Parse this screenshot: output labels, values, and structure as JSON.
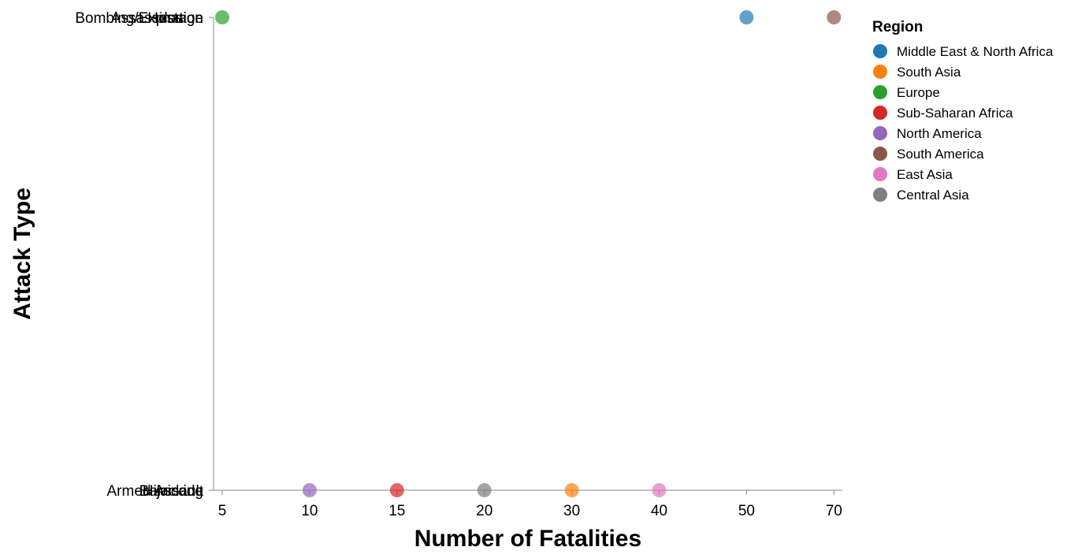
{
  "chart_data": {
    "type": "scatter",
    "title": "",
    "xlabel": "Number of Fatalities",
    "ylabel": "Attack Type",
    "x_ticks": [
      "5",
      "10",
      "15",
      "20",
      "30",
      "40",
      "50",
      "70"
    ],
    "y_categories": [
      "Bombing/Explosion",
      "Hostage",
      "Assassination",
      "Barricade",
      "Hijacking",
      "Armed Assault"
    ],
    "legend_title": "Region",
    "legend_position": "right",
    "grid": false,
    "points": [
      {
        "x": 50,
        "y": "Bombing/Explosion",
        "region": "Middle East & North Africa"
      },
      {
        "x": 30,
        "y": "Armed Assault",
        "region": "South Asia"
      },
      {
        "x": 5,
        "y": "Assassination",
        "region": "Europe"
      },
      {
        "x": 15,
        "y": "Hijacking",
        "region": "Sub-Saharan Africa"
      },
      {
        "x": 10,
        "y": "Barricade",
        "region": "North America"
      },
      {
        "x": 70,
        "y": "Hostage",
        "region": "South America"
      },
      {
        "x": 40,
        "y": "Armed Assault",
        "region": "East Asia"
      },
      {
        "x": 20,
        "y": "Hijacking",
        "region": "Central Asia"
      }
    ],
    "series": [
      {
        "name": "Middle East & North Africa",
        "color": "#1f77b4"
      },
      {
        "name": "South Asia",
        "color": "#ff7f0e"
      },
      {
        "name": "Europe",
        "color": "#2ca02c"
      },
      {
        "name": "Sub-Saharan Africa",
        "color": "#d62728"
      },
      {
        "name": "North America",
        "color": "#9467bd"
      },
      {
        "name": "South America",
        "color": "#8c564b"
      },
      {
        "name": "East Asia",
        "color": "#e377c2"
      },
      {
        "name": "Central Asia",
        "color": "#7f7f7f"
      }
    ]
  }
}
